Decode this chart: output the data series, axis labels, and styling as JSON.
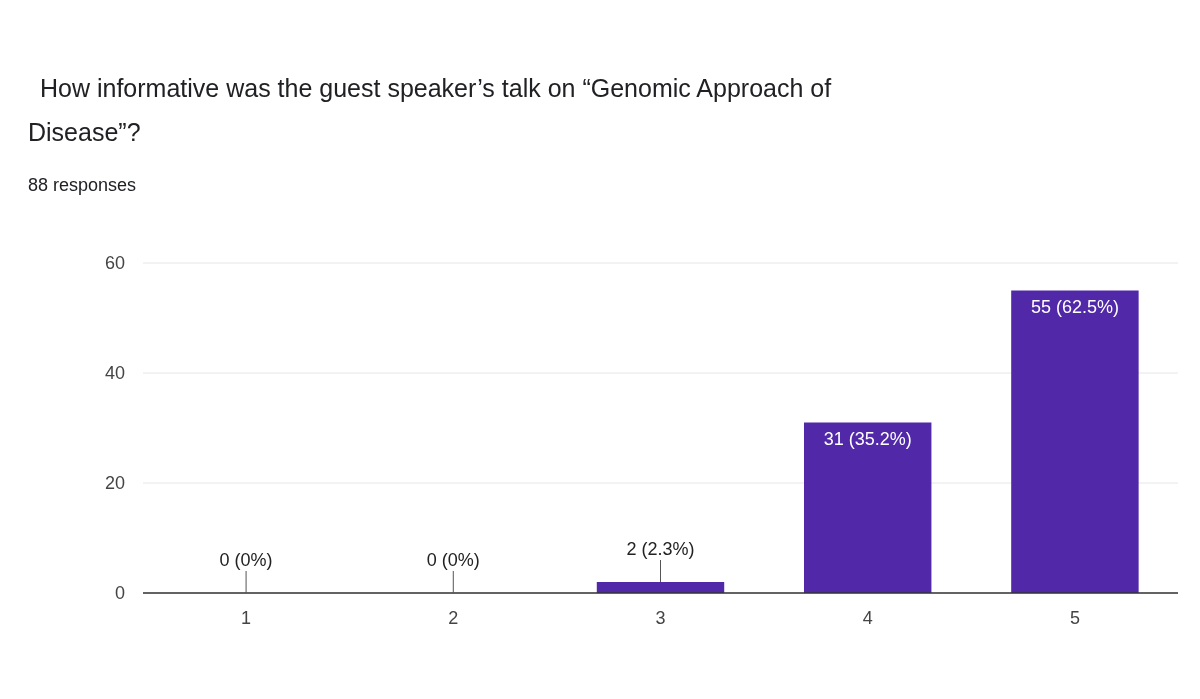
{
  "chart_data": {
    "type": "bar",
    "title": "How informative was the guest speaker’s talk on “Genomic Approach of Disease”?",
    "subtitle": "88 responses",
    "categories": [
      "1",
      "2",
      "3",
      "4",
      "5"
    ],
    "values": [
      0,
      0,
      2,
      31,
      55
    ],
    "color": "#5028a8",
    "value_labels": [
      "0 (0%)",
      "0 (0%)",
      "2 (2.3%)",
      "31 (35.2%)",
      "55 (62.5%)"
    ],
    "ylim": [
      0,
      60
    ],
    "yticks": [
      0,
      20,
      40,
      60
    ],
    "grid": "y"
  }
}
